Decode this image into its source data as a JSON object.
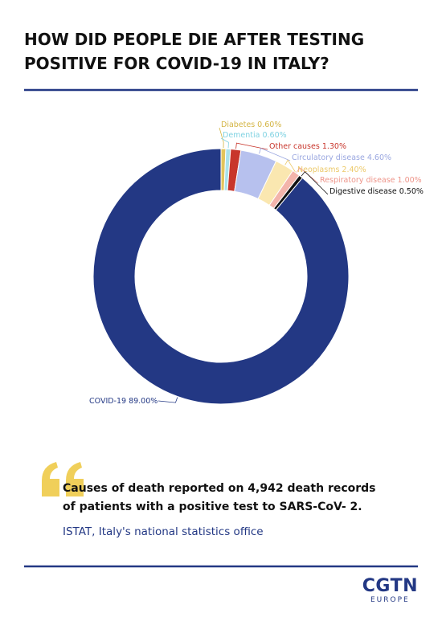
{
  "chart_data": {
    "type": "donut",
    "title": [
      "HOW DID PEOPLE DIE AFTER TESTING",
      "POSITIVE FOR COVID-19 IN ITALY?"
    ],
    "categories": [
      "Diabetes",
      "Dementia",
      "Other causes",
      "Circulatory disease",
      "Neoplasms",
      "Respiratory disease",
      "Digestive disease",
      "COVID-19"
    ],
    "values": [
      0.6,
      0.6,
      1.3,
      4.6,
      2.4,
      1.0,
      0.5,
      89.0
    ],
    "value_labels": [
      "0.60%",
      "0.60%",
      "1.30%",
      "4.60%",
      "2.40%",
      "1.00%",
      "0.50%",
      "89.00%"
    ],
    "colors": [
      "#e3c45c",
      "#a9e2ec",
      "#c8352b",
      "#b7c1ee",
      "#fae7b0",
      "#f3b4ab",
      "#111111",
      "#233884"
    ]
  },
  "quote": {
    "text": "Causes of death reported on 4,942 death records of patients with a positive test to SARS-CoV- 2.",
    "source": "ISTAT, Italy's national statistics office"
  },
  "logo": {
    "name": "CGTN",
    "sub": "EUROPE"
  }
}
